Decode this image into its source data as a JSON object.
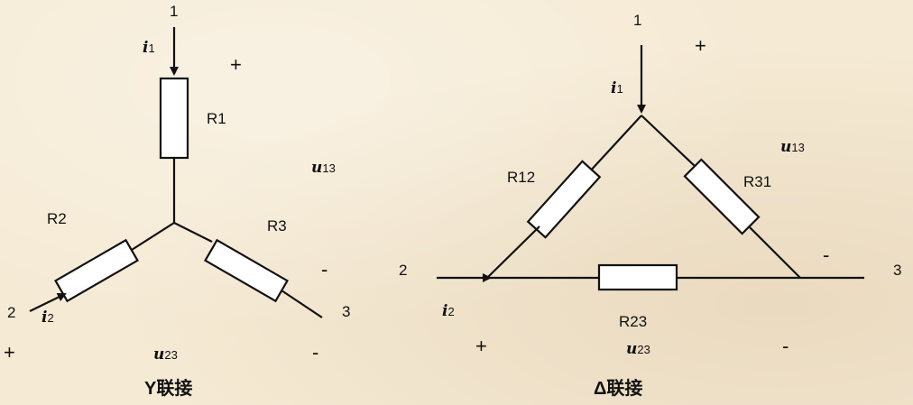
{
  "y_diagram": {
    "caption": "Y联接",
    "node1": "1",
    "node2": "2",
    "node3": "3",
    "r1": "R1",
    "r2": "R2",
    "r3": "R3",
    "i1": "i",
    "i1_sub": "1",
    "i2": "i",
    "i2_sub": "2",
    "u13": "u",
    "u13_sub": "13",
    "u23": "u",
    "u23_sub": "23",
    "plus_top": "+",
    "minus_right": "-",
    "plus_bottom": "+",
    "minus_bottom": "-"
  },
  "delta_diagram": {
    "caption": "Δ联接",
    "node1": "1",
    "node2": "2",
    "node3": "3",
    "r12": "R12",
    "r23": "R23",
    "r31": "R31",
    "i1": "i",
    "i1_sub": "1",
    "i2": "i",
    "i2_sub": "2",
    "u13": "u",
    "u13_sub": "13",
    "u23": "u",
    "u23_sub": "23",
    "plus_top": "+",
    "minus_right": "-",
    "plus_bottom": "+",
    "minus_bottom": "-"
  }
}
